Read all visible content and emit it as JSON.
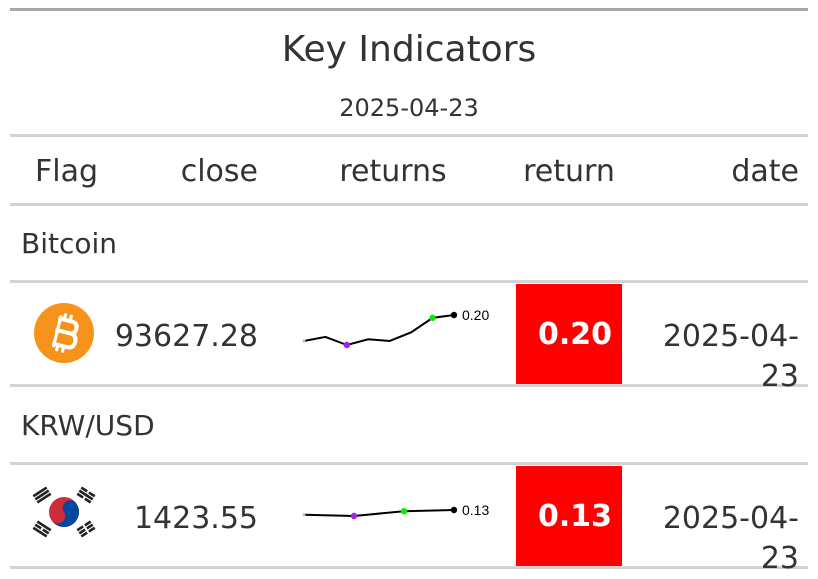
{
  "table": {
    "title": "Key Indicators",
    "subtitle": "2025-04-23",
    "columns": [
      "Flag",
      "close",
      "returns",
      "return",
      "date"
    ],
    "groups": [
      {
        "name": "Bitcoin",
        "icon": "bitcoin-icon",
        "close": "93627.28",
        "return": "0.20",
        "date": "2025-04-23",
        "spark_label": "0.20",
        "spark": [
          0.155,
          0.162,
          0.148,
          0.158,
          0.155,
          0.17,
          0.195,
          0.2
        ]
      },
      {
        "name": "KRW/USD",
        "icon": "south-korea-flag-icon",
        "close": "1423.55",
        "return": "0.13",
        "date": "2025-04-23",
        "spark_label": "0.13",
        "spark": [
          0.126,
          0.125,
          0.129,
          0.13
        ]
      }
    ],
    "colors": {
      "return_fill": "#ff0000",
      "spark_max": "#00ee00",
      "spark_min": "#a020f0",
      "rule": "#d3d3d3",
      "bitcoin": "#f7931a"
    }
  }
}
